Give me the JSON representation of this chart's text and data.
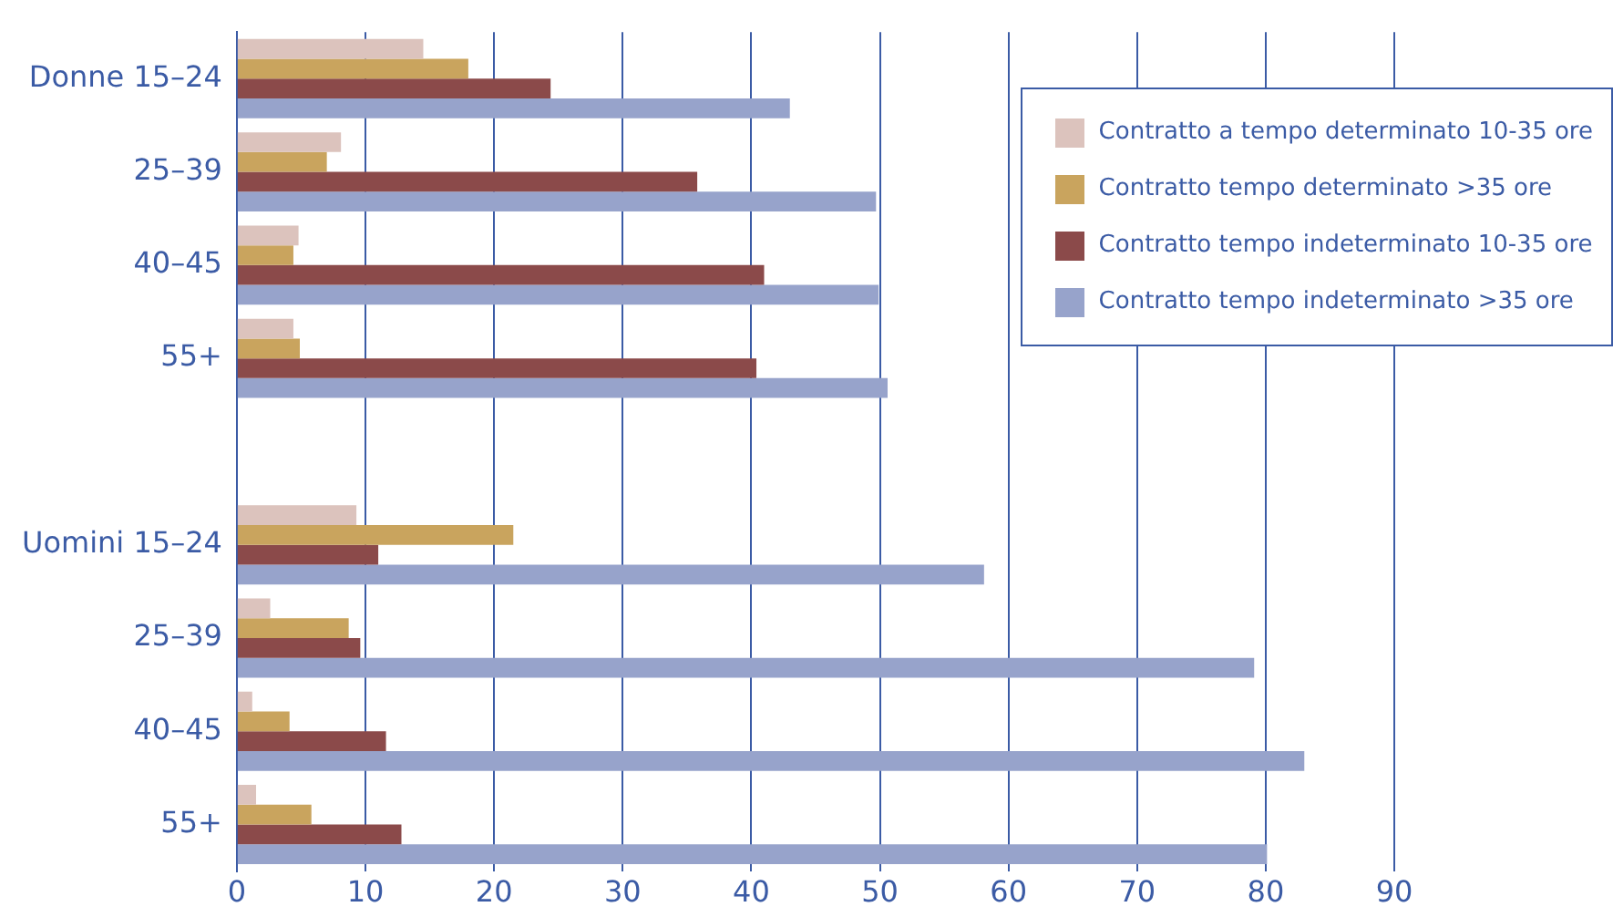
{
  "chart_data": {
    "type": "bar",
    "orientation": "horizontal",
    "categories": [
      "Donne 15–24",
      "25–39",
      "40–45",
      "55+",
      null,
      "Uomini 15–24",
      "25–39",
      "40–45",
      "55+"
    ],
    "series": [
      {
        "name": "Contratto a tempo determinato 10-35 ore",
        "color": "#dcc3bd",
        "values": [
          14.5,
          8.1,
          4.8,
          4.4,
          null,
          9.3,
          2.6,
          1.2,
          1.5
        ]
      },
      {
        "name": "Contratto tempo determinato >35 ore",
        "color": "#c9a45e",
        "values": [
          18,
          7,
          4.4,
          4.9,
          null,
          21.5,
          8.7,
          4.1,
          5.8
        ]
      },
      {
        "name": "Contratto tempo indeterminato 10-35 ore",
        "color": "#8b4a4a",
        "values": [
          24.4,
          35.8,
          41,
          40.4,
          null,
          11,
          9.6,
          11.6,
          12.8
        ]
      },
      {
        "name": "Contratto tempo indeterminato >35 ore",
        "color": "#97a3cb",
        "values": [
          43,
          49.7,
          49.9,
          50.6,
          null,
          58.1,
          79.1,
          83,
          80.1
        ]
      }
    ],
    "xlim": [
      0,
      107
    ],
    "xticks": [
      0,
      10,
      20,
      30,
      40,
      50,
      60,
      70,
      80,
      90
    ],
    "grid": "x",
    "legend": "top right"
  }
}
